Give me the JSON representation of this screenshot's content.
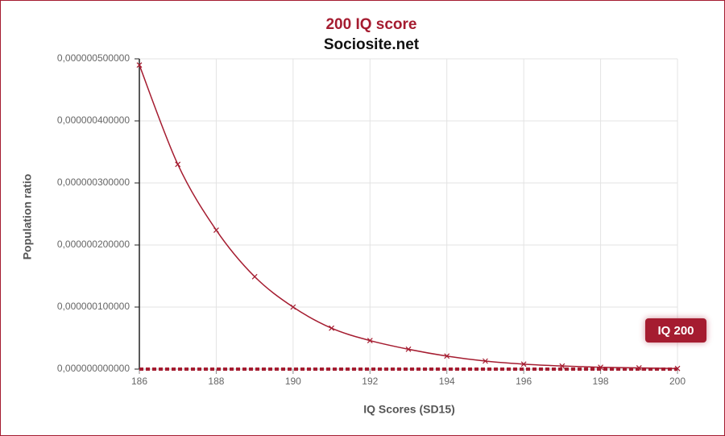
{
  "chart_data": {
    "type": "line",
    "title": "200 IQ score",
    "subtitle": "Sociosite.net",
    "x_label": "IQ Scores (SD15)",
    "y_label": "Population ratio",
    "x": [
      186,
      187,
      188,
      189,
      190,
      191,
      192,
      193,
      194,
      195,
      196,
      197,
      198,
      199,
      200
    ],
    "series": [
      {
        "name": "Population ratio",
        "color": "#a51c30",
        "values": [
          4.9e-07,
          3.3e-07,
          2.24e-07,
          1.49e-07,
          1e-07,
          6.6e-08,
          4.6e-08,
          3.2e-08,
          2.1e-08,
          1.3e-08,
          8e-09,
          5e-09,
          3e-09,
          2e-09,
          1e-09
        ]
      }
    ],
    "xlim": [
      186,
      200
    ],
    "xticks": [
      186,
      188,
      190,
      192,
      194,
      196,
      198,
      200
    ],
    "ylim": [
      0,
      5e-07
    ],
    "yticks": [
      {
        "value": 0,
        "label": "0,000000000000"
      },
      {
        "value": 1e-07,
        "label": "0,000000100000"
      },
      {
        "value": 2e-07,
        "label": "0,000000200000"
      },
      {
        "value": 3e-07,
        "label": "0,000000300000"
      },
      {
        "value": 4e-07,
        "label": "0,000000400000"
      },
      {
        "value": 5e-07,
        "label": "0,000000500000"
      }
    ],
    "grid": true,
    "reference_line": {
      "value": 0,
      "color": "#a51c30",
      "label": "IQ 200"
    }
  }
}
